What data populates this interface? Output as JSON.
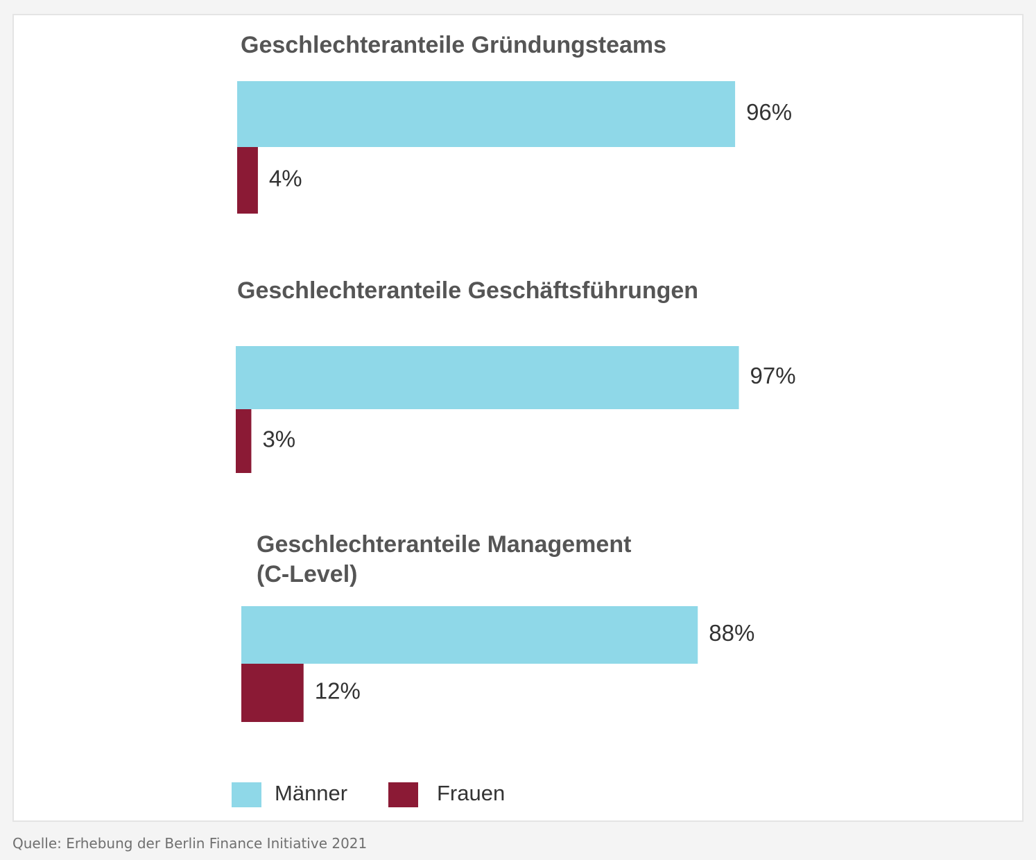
{
  "colors": {
    "maenner": "#8fd8e8",
    "frauen": "#8b1a35",
    "title_text": "#555555",
    "label_text": "#333333"
  },
  "chart_data": [
    {
      "type": "bar",
      "orientation": "horizontal",
      "title": "Geschlechteranteile Gründungsteams",
      "series": [
        {
          "name": "Männer",
          "values": [
            96
          ],
          "labels": [
            "96%"
          ]
        },
        {
          "name": "Frauen",
          "values": [
            4
          ],
          "labels": [
            "4%"
          ]
        }
      ],
      "xlim": [
        0,
        100
      ]
    },
    {
      "type": "bar",
      "orientation": "horizontal",
      "title": "Geschlechteranteile Geschäftsführungen",
      "series": [
        {
          "name": "Männer",
          "values": [
            97
          ],
          "labels": [
            "97%"
          ]
        },
        {
          "name": "Frauen",
          "values": [
            3
          ],
          "labels": [
            "3%"
          ]
        }
      ],
      "xlim": [
        0,
        100
      ]
    },
    {
      "type": "bar",
      "orientation": "horizontal",
      "title": "Geschlechteranteile Management (C-Level)",
      "series": [
        {
          "name": "Männer",
          "values": [
            88
          ],
          "labels": [
            "88%"
          ]
        },
        {
          "name": "Frauen",
          "values": [
            12
          ],
          "labels": [
            "12%"
          ]
        }
      ],
      "xlim": [
        0,
        100
      ]
    }
  ],
  "legend": {
    "placement": "bottom-left",
    "items": [
      "Männer",
      "Frauen"
    ]
  },
  "caption": "Quelle: Erhebung der Berlin Finance Initiative 2021"
}
